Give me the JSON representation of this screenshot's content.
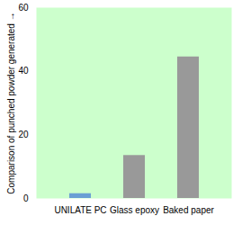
{
  "chart_data": {
    "type": "bar",
    "y_label": "Comparison of punched powder generated",
    "categories": [
      "UNILATE PC",
      "Glass epoxy",
      "Baked paper"
    ],
    "values": [
      1.5,
      13.5,
      44.5
    ],
    "colors": [
      "#6a9fd4",
      "#999999",
      "#999999"
    ],
    "ylim": [
      0,
      60
    ],
    "yticks": [
      0,
      20,
      40,
      60
    ],
    "grid": false
  }
}
